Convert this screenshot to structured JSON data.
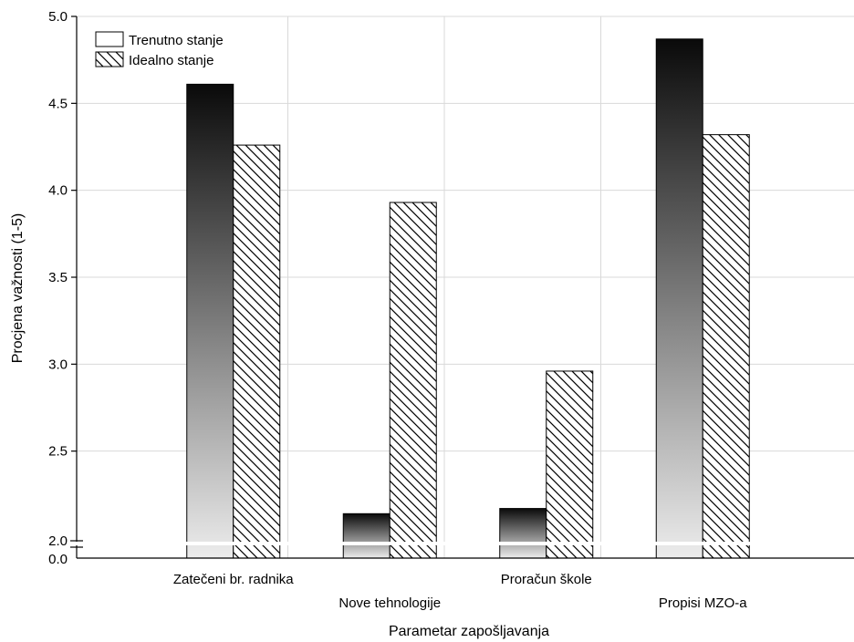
{
  "chart_data": {
    "type": "bar",
    "xlabel": "Parametar zapošljavanja",
    "ylabel": "Procjena važnosti (1-5)",
    "categories": [
      "Zatečeni br. radnika",
      "Nove tehnologije",
      "Proračun škole",
      "Propisi MZO-a"
    ],
    "series": [
      {
        "name": "Trenutno stanje",
        "values": [
          4.61,
          2.14,
          2.17,
          4.87
        ],
        "style": "vertical-gradient-dark-to-light"
      },
      {
        "name": "Idealno stanje",
        "values": [
          4.26,
          3.93,
          2.96,
          4.32
        ],
        "style": "diagonal-hatch"
      }
    ],
    "ylim": [
      2.0,
      5.0
    ],
    "broken_axis": true,
    "y_ticks": [
      "2.0",
      "2.5",
      "3.0",
      "3.5",
      "4.0",
      "4.5",
      "5.0"
    ],
    "y_tick_values": [
      2.0,
      2.5,
      3.0,
      3.5,
      4.0,
      4.5,
      5.0
    ],
    "y_break_label": "0.0",
    "grid": true,
    "legend_position": "top-left",
    "category_labels_staggered": true,
    "colors": {
      "gradient_top": "#0a0a0a",
      "gradient_bottom": "#ececec",
      "hatch": "#000000",
      "grid": "#d9d9d9"
    }
  }
}
